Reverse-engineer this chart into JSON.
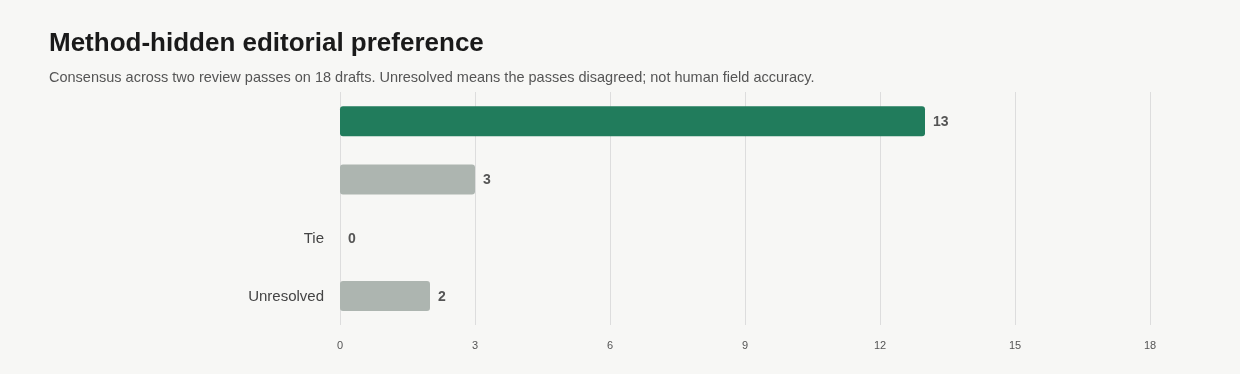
{
  "chart_data": {
    "type": "bar",
    "orientation": "horizontal",
    "title": "Method-hidden editorial preference",
    "subtitle": "Consensus across two review passes on 18 drafts. Unresolved means the passes disagreed; not human field accuracy.",
    "categories": [
      null,
      null,
      "Tie",
      "Unresolved"
    ],
    "values": [
      13,
      3,
      0,
      2
    ],
    "colors": [
      "#217c5c",
      "#adb5b0",
      "#adb5b0",
      "#adb5b0"
    ],
    "xlim": [
      0,
      18
    ],
    "xticks": [
      0,
      3,
      6,
      9,
      12,
      15,
      18
    ],
    "grid": "x",
    "data_labels": true
  }
}
